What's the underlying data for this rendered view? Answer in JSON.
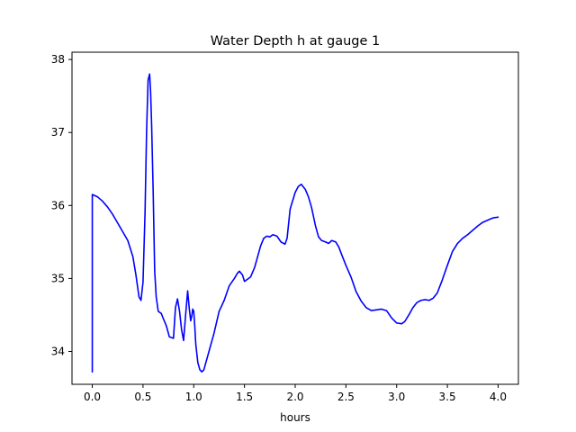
{
  "chart_data": {
    "type": "line",
    "title": "Water Depth h at gauge 1",
    "xlabel": "hours",
    "ylabel": "",
    "xlim": [
      -0.2,
      4.2
    ],
    "ylim": [
      33.55,
      38.1
    ],
    "xticks": [
      0.0,
      0.5,
      1.0,
      1.5,
      2.0,
      2.5,
      3.0,
      3.5,
      4.0
    ],
    "xtick_labels": [
      "0.0",
      "0.5",
      "1.0",
      "1.5",
      "2.0",
      "2.5",
      "3.0",
      "3.5",
      "4.0"
    ],
    "yticks": [
      34,
      35,
      36,
      37,
      38
    ],
    "ytick_labels": [
      "34",
      "35",
      "36",
      "37",
      "38"
    ],
    "grid": false,
    "series": [
      {
        "color": "#0000ff",
        "x": [
          0.0,
          0.0,
          0.05,
          0.1,
          0.15,
          0.2,
          0.25,
          0.3,
          0.35,
          0.4,
          0.43,
          0.46,
          0.48,
          0.5,
          0.52,
          0.535,
          0.55,
          0.565,
          0.575,
          0.585,
          0.6,
          0.615,
          0.63,
          0.65,
          0.68,
          0.7,
          0.73,
          0.76,
          0.8,
          0.82,
          0.84,
          0.86,
          0.88,
          0.9,
          0.92,
          0.94,
          0.955,
          0.97,
          0.98,
          0.99,
          1.0,
          1.01,
          1.02,
          1.04,
          1.06,
          1.08,
          1.1,
          1.12,
          1.15,
          1.18,
          1.2,
          1.25,
          1.3,
          1.35,
          1.4,
          1.43,
          1.45,
          1.48,
          1.5,
          1.53,
          1.56,
          1.6,
          1.63,
          1.66,
          1.69,
          1.72,
          1.75,
          1.78,
          1.82,
          1.86,
          1.9,
          1.92,
          1.95,
          2.0,
          2.03,
          2.06,
          2.1,
          2.13,
          2.16,
          2.2,
          2.23,
          2.26,
          2.3,
          2.33,
          2.36,
          2.4,
          2.43,
          2.46,
          2.5,
          2.55,
          2.6,
          2.65,
          2.7,
          2.75,
          2.8,
          2.85,
          2.9,
          2.95,
          3.0,
          3.05,
          3.08,
          3.12,
          3.16,
          3.2,
          3.24,
          3.28,
          3.32,
          3.36,
          3.4,
          3.45,
          3.5,
          3.55,
          3.6,
          3.65,
          3.7,
          3.75,
          3.8,
          3.85,
          3.9,
          3.95,
          4.0
        ],
        "y": [
          33.72,
          36.15,
          36.12,
          36.06,
          35.98,
          35.88,
          35.76,
          35.64,
          35.52,
          35.3,
          35.05,
          34.75,
          34.7,
          34.95,
          35.9,
          37.0,
          37.72,
          37.8,
          37.55,
          37.1,
          36.2,
          35.1,
          34.75,
          34.55,
          34.52,
          34.45,
          34.35,
          34.2,
          34.18,
          34.6,
          34.72,
          34.55,
          34.3,
          34.15,
          34.5,
          34.83,
          34.6,
          34.42,
          34.48,
          34.58,
          34.55,
          34.35,
          34.1,
          33.85,
          33.75,
          33.72,
          33.75,
          33.85,
          34.0,
          34.15,
          34.25,
          34.55,
          34.7,
          34.9,
          35.0,
          35.07,
          35.1,
          35.05,
          34.96,
          34.99,
          35.02,
          35.15,
          35.3,
          35.45,
          35.55,
          35.58,
          35.57,
          35.6,
          35.58,
          35.5,
          35.47,
          35.55,
          35.95,
          36.18,
          36.26,
          36.29,
          36.22,
          36.12,
          35.98,
          35.72,
          35.57,
          35.52,
          35.5,
          35.48,
          35.52,
          35.5,
          35.43,
          35.32,
          35.18,
          35.02,
          34.82,
          34.69,
          34.6,
          34.56,
          34.57,
          34.58,
          34.56,
          34.46,
          34.39,
          34.38,
          34.41,
          34.5,
          34.6,
          34.67,
          34.7,
          34.71,
          34.7,
          34.73,
          34.8,
          34.98,
          35.18,
          35.37,
          35.48,
          35.55,
          35.6,
          35.66,
          35.72,
          35.77,
          35.8,
          35.83,
          35.84
        ]
      }
    ]
  }
}
